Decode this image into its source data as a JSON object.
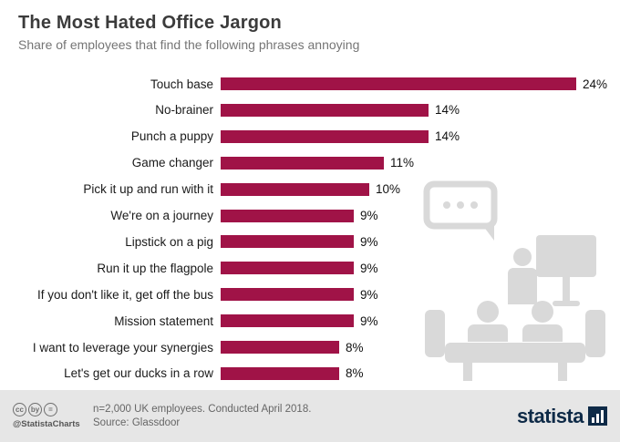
{
  "header": {
    "title": "The Most Hated Office Jargon",
    "subtitle": "Share of employees that find the following phrases annoying"
  },
  "chart_data": {
    "type": "bar",
    "orientation": "horizontal",
    "categories": [
      "Touch base",
      "No-brainer",
      "Punch a puppy",
      "Game changer",
      "Pick it up and run with it",
      "We're on a journey",
      "Lipstick on a pig",
      "Run it up the flagpole",
      "If you don't like it, get off the bus",
      "Mission statement",
      "I want to leverage your synergies",
      "Let's get our ducks in a row"
    ],
    "values": [
      24,
      14,
      14,
      11,
      10,
      9,
      9,
      9,
      9,
      9,
      8,
      8
    ],
    "value_suffix": "%",
    "title": "The Most Hated Office Jargon",
    "xlabel": "",
    "ylabel": "",
    "xlim": [
      0,
      25
    ],
    "grid": false,
    "legend": "none",
    "data_labels": "outside-end"
  },
  "colors": {
    "bar": "#a01347",
    "title": "#3b3b3b",
    "subtitle": "#757575",
    "footer_bg": "#e6e6e6",
    "brand_navy": "#0e2a47",
    "illustration_gray": "#d9d9d9"
  },
  "icons": {
    "cc": "cc",
    "attribution": "by",
    "no_derivatives": "="
  },
  "footer": {
    "handle": "@StatistaCharts",
    "note_line1": "n=2,000 UK employees. Conducted April 2018.",
    "note_line2": "Source: Glassdoor",
    "brand": "statista"
  }
}
